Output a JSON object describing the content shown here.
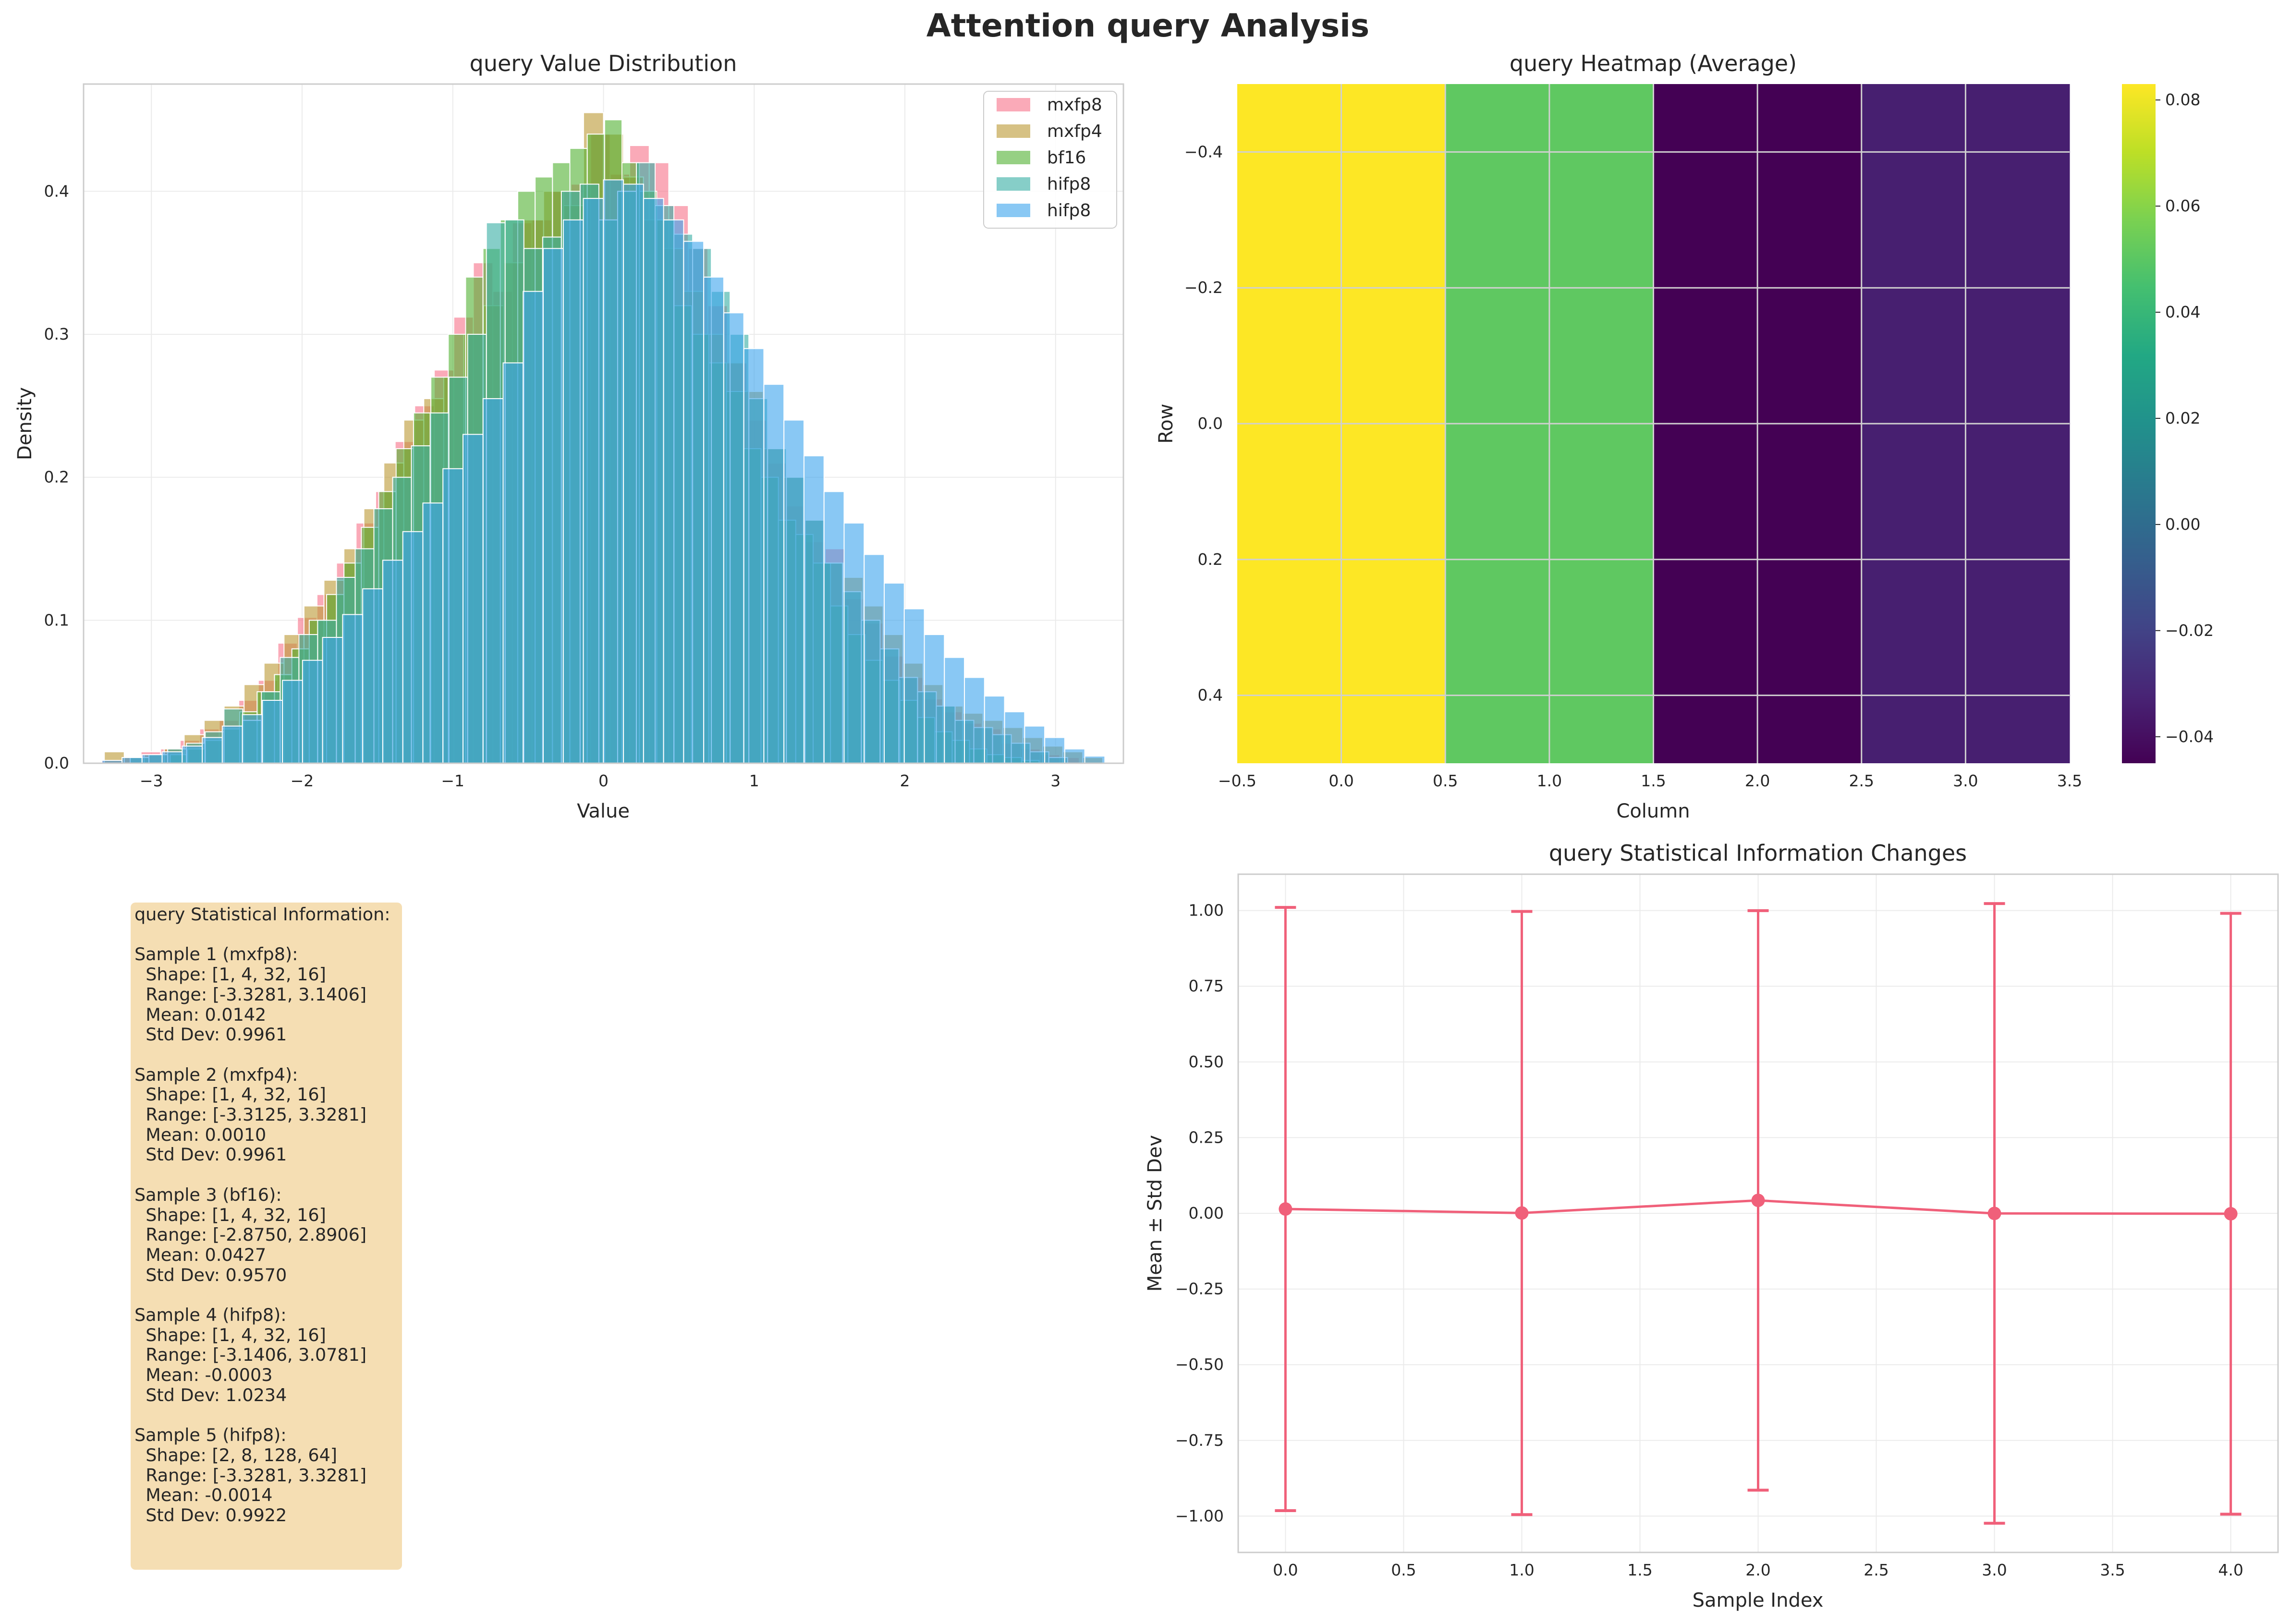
{
  "suptitle": "Attention query Analysis",
  "colors": {
    "mxfp8": "#f77189",
    "mxfp4": "#bb9832",
    "bf16": "#50b131",
    "hifp8_a": "#36ada4",
    "hifp8_b": "#3ba3ec",
    "line": "#f0607a",
    "infobox_bg": "#f5deb3"
  },
  "chart_data": [
    {
      "type": "bar",
      "subtype": "histogram",
      "title": "query Value Distribution",
      "xlabel": "Value",
      "ylabel": "Density",
      "xlim": [
        -3.45,
        3.45
      ],
      "ylim": [
        0,
        0.475
      ],
      "xticks": [
        -3,
        -2,
        -1,
        0,
        1,
        2,
        3
      ],
      "xticklabels": [
        "−3",
        "−2",
        "−1",
        "0",
        "1",
        "2",
        "3"
      ],
      "yticks": [
        0.0,
        0.1,
        0.2,
        0.3,
        0.4
      ],
      "yticklabels": [
        "0.0",
        "0.1",
        "0.2",
        "0.3",
        "0.4"
      ],
      "grid": true,
      "legend_position": "top-right",
      "series": [
        {
          "name": "mxfp8",
          "color_key": "mxfp8",
          "bin_start": -3.3281,
          "bin_width": 0.1297,
          "values": [
            0.002,
            0.004,
            0.008,
            0.01,
            0.016,
            0.024,
            0.03,
            0.044,
            0.058,
            0.084,
            0.102,
            0.118,
            0.14,
            0.168,
            0.19,
            0.225,
            0.25,
            0.275,
            0.312,
            0.35,
            0.33,
            0.378,
            0.38,
            0.4,
            0.405,
            0.44,
            0.412,
            0.432,
            0.42,
            0.39,
            0.36,
            0.32,
            0.28,
            0.24,
            0.21,
            0.18,
            0.155,
            0.15,
            0.115,
            0.098,
            0.075,
            0.06,
            0.045,
            0.036,
            0.028,
            0.024,
            0.014,
            0.01,
            0.006,
            0.004
          ]
        },
        {
          "name": "mxfp4",
          "color_key": "mxfp4",
          "bin_start": -3.3125,
          "bin_width": 0.1325,
          "values": [
            0.008,
            0.004,
            0.006,
            0.01,
            0.02,
            0.03,
            0.04,
            0.055,
            0.07,
            0.09,
            0.11,
            0.128,
            0.15,
            0.178,
            0.21,
            0.24,
            0.255,
            0.27,
            0.3,
            0.32,
            0.35,
            0.38,
            0.4,
            0.39,
            0.455,
            0.44,
            0.41,
            0.38,
            0.36,
            0.33,
            0.3,
            0.28,
            0.26,
            0.22,
            0.2,
            0.17,
            0.14,
            0.13,
            0.11,
            0.09,
            0.07,
            0.055,
            0.04,
            0.035,
            0.03,
            0.025,
            0.018,
            0.012,
            0.008,
            0.004
          ]
        },
        {
          "name": "bf16",
          "color_key": "bf16",
          "bin_start": -2.875,
          "bin_width": 0.1153,
          "values": [
            0.006,
            0.01,
            0.016,
            0.024,
            0.036,
            0.05,
            0.062,
            0.08,
            0.1,
            0.118,
            0.14,
            0.165,
            0.19,
            0.22,
            0.245,
            0.27,
            0.3,
            0.34,
            0.36,
            0.38,
            0.4,
            0.41,
            0.42,
            0.43,
            0.44,
            0.45,
            0.42,
            0.4,
            0.38,
            0.32,
            0.3,
            0.28,
            0.26,
            0.22,
            0.2,
            0.17,
            0.16,
            0.14,
            0.11,
            0.09,
            0.072,
            0.058,
            0.044,
            0.032,
            0.022,
            0.016,
            0.01,
            0.006,
            0.004,
            0.002
          ]
        },
        {
          "name": "hifp8",
          "color_key": "hifp8_a",
          "bin_start": -3.1406,
          "bin_width": 0.1244,
          "values": [
            0.004,
            0.006,
            0.01,
            0.014,
            0.022,
            0.038,
            0.03,
            0.05,
            0.074,
            0.09,
            0.1,
            0.13,
            0.15,
            0.178,
            0.2,
            0.222,
            0.245,
            0.27,
            0.3,
            0.378,
            0.38,
            0.36,
            0.368,
            0.4,
            0.405,
            0.38,
            0.4,
            0.42,
            0.39,
            0.37,
            0.36,
            0.33,
            0.3,
            0.255,
            0.22,
            0.2,
            0.17,
            0.14,
            0.12,
            0.1,
            0.08,
            0.06,
            0.05,
            0.04,
            0.03,
            0.025,
            0.02,
            0.014,
            0.008,
            0.004
          ]
        },
        {
          "name": "hifp8",
          "color_key": "hifp8_b",
          "bin_start": -3.3281,
          "bin_width": 0.1331,
          "values": [
            0.002,
            0.004,
            0.006,
            0.008,
            0.012,
            0.018,
            0.026,
            0.034,
            0.044,
            0.058,
            0.072,
            0.088,
            0.104,
            0.122,
            0.142,
            0.162,
            0.182,
            0.206,
            0.23,
            0.255,
            0.28,
            0.33,
            0.36,
            0.38,
            0.395,
            0.408,
            0.405,
            0.395,
            0.38,
            0.365,
            0.34,
            0.315,
            0.29,
            0.265,
            0.24,
            0.215,
            0.19,
            0.168,
            0.146,
            0.126,
            0.108,
            0.09,
            0.074,
            0.06,
            0.047,
            0.036,
            0.026,
            0.018,
            0.01,
            0.005
          ]
        }
      ]
    },
    {
      "type": "heatmap",
      "title": "query Heatmap (Average)",
      "xlabel": "Column",
      "ylabel": "Row",
      "xlim": [
        -0.5,
        3.5
      ],
      "ylim": [
        -0.5,
        0.5
      ],
      "xticklabels": [
        "−0.5",
        "0.0",
        "0.5",
        "1.0",
        "1.5",
        "2.0",
        "2.5",
        "3.0",
        "3.5"
      ],
      "yticklabels": [
        "−0.4",
        "−0.2",
        "0.0",
        "0.2",
        "0.4"
      ],
      "values": [
        [
          0.083,
          0.051,
          -0.045,
          -0.034
        ]
      ],
      "colormap": "viridis",
      "colorbar": {
        "min": -0.045,
        "max": 0.083,
        "ticks": [
          -0.04,
          -0.02,
          0.0,
          0.02,
          0.04,
          0.06,
          0.08
        ],
        "ticklabels": [
          "−0.04",
          "−0.02",
          "0.00",
          "0.02",
          "0.04",
          "0.06",
          "0.08"
        ]
      }
    },
    {
      "type": "line",
      "subtype": "errorbar",
      "title": "query Statistical Information Changes",
      "xlabel": "Sample Index",
      "ylabel": "Mean ± Std Dev",
      "xlim": [
        -0.2,
        4.2
      ],
      "ylim": [
        -1.12,
        1.12
      ],
      "xticklabels": [
        "0.0",
        "0.5",
        "1.0",
        "1.5",
        "2.0",
        "2.5",
        "3.0",
        "3.5",
        "4.0"
      ],
      "yticklabels": [
        "−1.00",
        "−0.75",
        "−0.50",
        "−0.25",
        "0.00",
        "0.25",
        "0.50",
        "0.75",
        "1.00"
      ],
      "grid": true,
      "x": [
        0,
        1,
        2,
        3,
        4
      ],
      "mean": [
        0.0142,
        0.001,
        0.0427,
        -0.0003,
        -0.0014
      ],
      "std": [
        0.9961,
        0.9961,
        0.957,
        1.0234,
        0.9922
      ]
    }
  ],
  "stats_box": {
    "text": "query Statistical Information:\n\nSample 1 (mxfp8):\n  Shape: [1, 4, 32, 16]\n  Range: [-3.3281, 3.1406]\n  Mean: 0.0142\n  Std Dev: 0.9961\n\nSample 2 (mxfp4):\n  Shape: [1, 4, 32, 16]\n  Range: [-3.3125, 3.3281]\n  Mean: 0.0010\n  Std Dev: 0.9961\n\nSample 3 (bf16):\n  Shape: [1, 4, 32, 16]\n  Range: [-2.8750, 2.8906]\n  Mean: 0.0427\n  Std Dev: 0.9570\n\nSample 4 (hifp8):\n  Shape: [1, 4, 32, 16]\n  Range: [-3.1406, 3.0781]\n  Mean: -0.0003\n  Std Dev: 1.0234\n\nSample 5 (hifp8):\n  Shape: [2, 8, 128, 64]\n  Range: [-3.3281, 3.3281]\n  Mean: -0.0014\n  Std Dev: 0.9922"
  }
}
